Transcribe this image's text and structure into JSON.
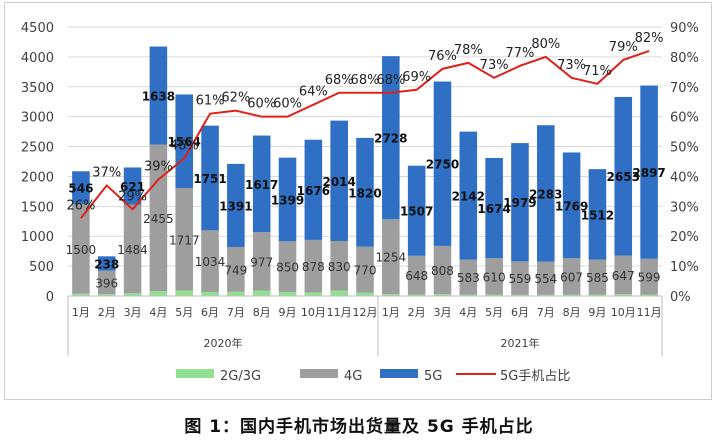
{
  "caption": "图 1：国内手机市场出货量及 5G 手机占比",
  "colors": {
    "g23": "#8fe08f",
    "g4": "#9e9e9e",
    "g5": "#2f6fc4",
    "share_line": "#e0211b"
  },
  "chart_data": {
    "type": "bar",
    "stacked": true,
    "title": "",
    "categories": [
      "1月",
      "2月",
      "3月",
      "4月",
      "5月",
      "6月",
      "7月",
      "8月",
      "9月",
      "10月",
      "11月",
      "12月",
      "1月",
      "2月",
      "3月",
      "4月",
      "5月",
      "6月",
      "7月",
      "8月",
      "9月",
      "10月",
      "11月"
    ],
    "year_groups": [
      {
        "label": "2020年",
        "count": 12
      },
      {
        "label": "2021年",
        "count": 11
      }
    ],
    "ylim": [
      0,
      4500
    ],
    "yticks": [
      "0",
      "500",
      "1000",
      "1500",
      "2000",
      "2500",
      "3000",
      "3500",
      "4000",
      "4500"
    ],
    "y2lim": [
      0,
      90
    ],
    "y2ticks": [
      "0%",
      "10%",
      "20%",
      "30%",
      "40%",
      "50%",
      "60%",
      "70%",
      "80%",
      "90%"
    ],
    "series": [
      {
        "name": "2G/3G",
        "kind": "bar",
        "values": [
          40,
          30,
          45,
          80,
          90,
          65,
          70,
          90,
          65,
          60,
          90,
          55,
          30,
          25,
          30,
          25,
          25,
          20,
          20,
          25,
          25,
          30,
          25
        ]
      },
      {
        "name": "4G",
        "kind": "bar",
        "values": [
          1500,
          396,
          1484,
          2455,
          1717,
          1034,
          749,
          977,
          850,
          878,
          830,
          770,
          1254,
          648,
          808,
          583,
          610,
          559,
          554,
          607,
          585,
          647,
          599
        ]
      },
      {
        "name": "5G",
        "kind": "bar",
        "values": [
          546,
          238,
          621,
          1638,
          1564,
          1751,
          1391,
          1617,
          1399,
          1676,
          2014,
          1820,
          2728,
          1507,
          2750,
          2142,
          1674,
          1979,
          2283,
          1769,
          1512,
          2653,
          2897
        ]
      },
      {
        "name": "5G手机占比",
        "kind": "line",
        "axis": "right",
        "values": [
          26,
          37,
          29,
          39,
          46,
          61,
          62,
          60,
          60,
          64,
          68,
          68,
          68,
          69,
          76,
          78,
          73,
          77,
          80,
          73,
          71,
          79,
          82
        ]
      }
    ],
    "legend": [
      "2G/3G",
      "4G",
      "5G",
      "5G手机占比"
    ],
    "legend_position": "bottom"
  }
}
